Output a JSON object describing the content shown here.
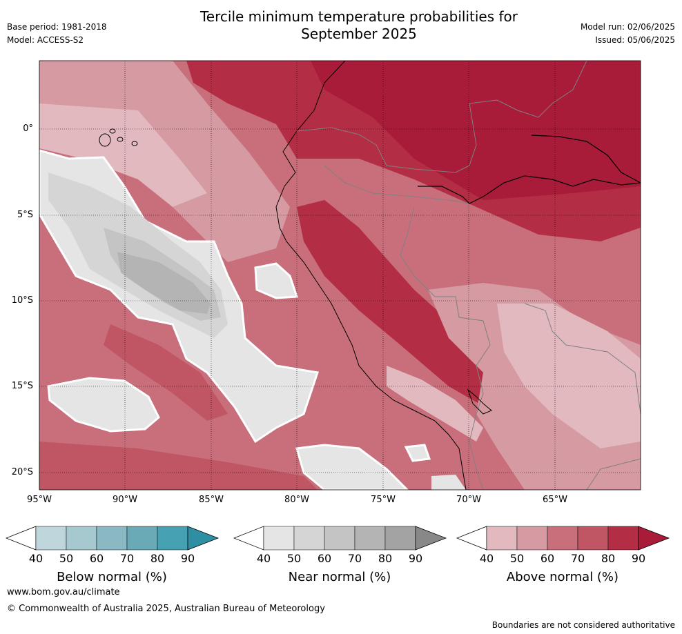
{
  "header": {
    "title_line1": "Tercile minimum temperature probabilities for",
    "title_line2": "September 2025",
    "base_period": "Base period: 1981-2018",
    "model": "Model: ACCESS-S2",
    "model_run": "Model run: 02/06/2025",
    "issued": "Issued: 05/06/2025"
  },
  "map": {
    "region": "Western South America and adjacent Pacific",
    "latitude_labels": [
      "0°",
      "5°S",
      "10°S",
      "15°S",
      "20°S"
    ],
    "longitude_labels": [
      "95°W",
      "90°W",
      "85°W",
      "80°W",
      "75°W",
      "70°W",
      "65°W"
    ]
  },
  "legends": [
    {
      "label": "Below normal (%)",
      "ticks": [
        "40",
        "50",
        "60",
        "70",
        "80",
        "90"
      ],
      "colors": [
        "#ffffff",
        "#bfd6dc",
        "#a6c8cf",
        "#8ab8c3",
        "#6aa9b6",
        "#46a1b3",
        "#2e8fa3"
      ]
    },
    {
      "label": "Near normal (%)",
      "ticks": [
        "40",
        "50",
        "60",
        "70",
        "80",
        "90"
      ],
      "colors": [
        "#ffffff",
        "#e5e5e5",
        "#d5d5d5",
        "#c4c4c4",
        "#b4b4b4",
        "#a3a3a3",
        "#888888"
      ]
    },
    {
      "label": "Above normal (%)",
      "ticks": [
        "40",
        "50",
        "60",
        "70",
        "80",
        "90"
      ],
      "colors": [
        "#ffffff",
        "#e2b9bf",
        "#d59aa2",
        "#c96f7c",
        "#c05664",
        "#b32e45",
        "#a81c3a"
      ]
    }
  ],
  "footer": {
    "url": "www.bom.gov.au/climate",
    "copyright": "© Commonwealth of Australia 2025, Australian Bureau of Meteorology",
    "note": "Boundaries are not considered authoritative"
  }
}
